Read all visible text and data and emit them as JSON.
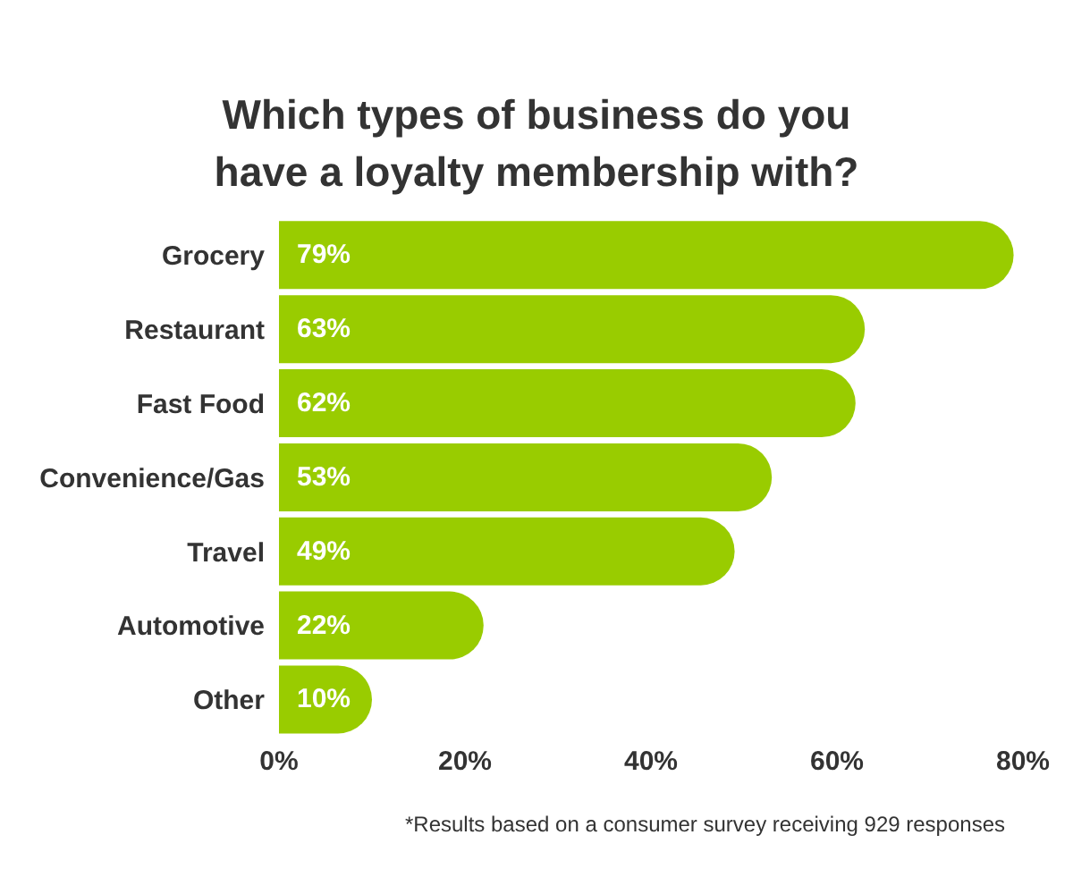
{
  "chart_data": {
    "type": "bar",
    "orientation": "horizontal",
    "title": "Which types of business do you have a loyalty membership with?",
    "categories": [
      "Grocery",
      "Restaurant",
      "Fast Food",
      "Convenience/Gas",
      "Travel",
      "Automotive",
      "Other"
    ],
    "values": [
      79,
      63,
      62,
      53,
      49,
      22,
      10
    ],
    "value_labels": [
      "79%",
      "63%",
      "62%",
      "53%",
      "49%",
      "22%",
      "10%"
    ],
    "color": "#99cc00",
    "xlim": [
      0,
      80
    ],
    "xticks": [
      {
        "value": 0,
        "label": "0%"
      },
      {
        "value": 20,
        "label": "20%"
      },
      {
        "value": 40,
        "label": "40%"
      },
      {
        "value": 60,
        "label": "60%"
      },
      {
        "value": 80,
        "label": "80%"
      }
    ],
    "annotations": [
      "*Results based on a consumer survey receiving 929 responses"
    ]
  }
}
